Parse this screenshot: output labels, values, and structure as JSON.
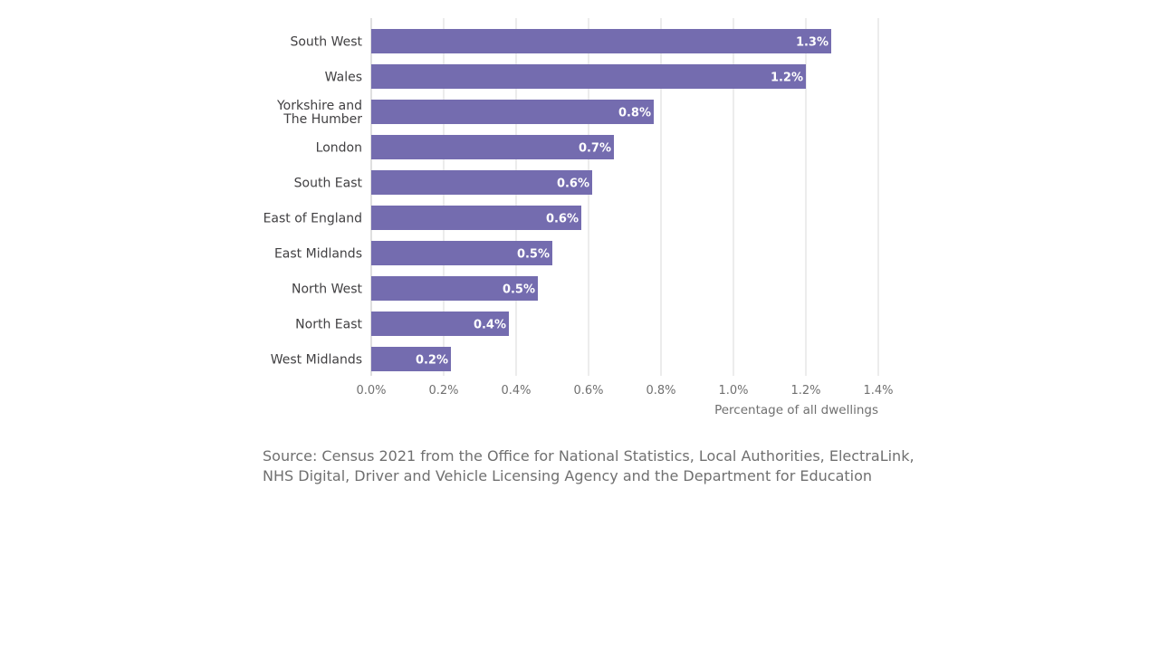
{
  "chart_data": {
    "type": "bar",
    "orientation": "horizontal",
    "categories": [
      "South West",
      "Wales",
      "Yorkshire and The Humber",
      "London",
      "South East",
      "East of England",
      "East Midlands",
      "North West",
      "North East",
      "West Midlands"
    ],
    "category_label_lines": [
      [
        "South West"
      ],
      [
        "Wales"
      ],
      [
        "Yorkshire and",
        "The Humber"
      ],
      [
        "London"
      ],
      [
        "South East"
      ],
      [
        "East of England"
      ],
      [
        "East Midlands"
      ],
      [
        "North West"
      ],
      [
        "North East"
      ],
      [
        "West Midlands"
      ]
    ],
    "values": [
      1.27,
      1.2,
      0.78,
      0.67,
      0.61,
      0.58,
      0.5,
      0.46,
      0.38,
      0.22
    ],
    "data_labels": [
      "1.3%",
      "1.2%",
      "0.8%",
      "0.7%",
      "0.6%",
      "0.6%",
      "0.5%",
      "0.5%",
      "0.4%",
      "0.2%"
    ],
    "xlim": [
      0,
      1.4
    ],
    "ticks": [
      0,
      0.2,
      0.4,
      0.6,
      0.8,
      1.0,
      1.2,
      1.4
    ],
    "tick_labels": [
      "0.0%",
      "0.2%",
      "0.4%",
      "0.6%",
      "0.8%",
      "1.0%",
      "1.2%",
      "1.4%"
    ],
    "xlabel": "Percentage of all dwellings",
    "ylabel": "",
    "title": "",
    "grid": true,
    "bar_color": "#746caf",
    "grid_color": "#d9d9d9"
  },
  "source": {
    "line1": "Source: Census 2021 from the Office for National Statistics, Local Authorities, ElectraLink,",
    "line2": "NHS Digital, Driver and Vehicle Licensing Agency and the Department for Education"
  }
}
